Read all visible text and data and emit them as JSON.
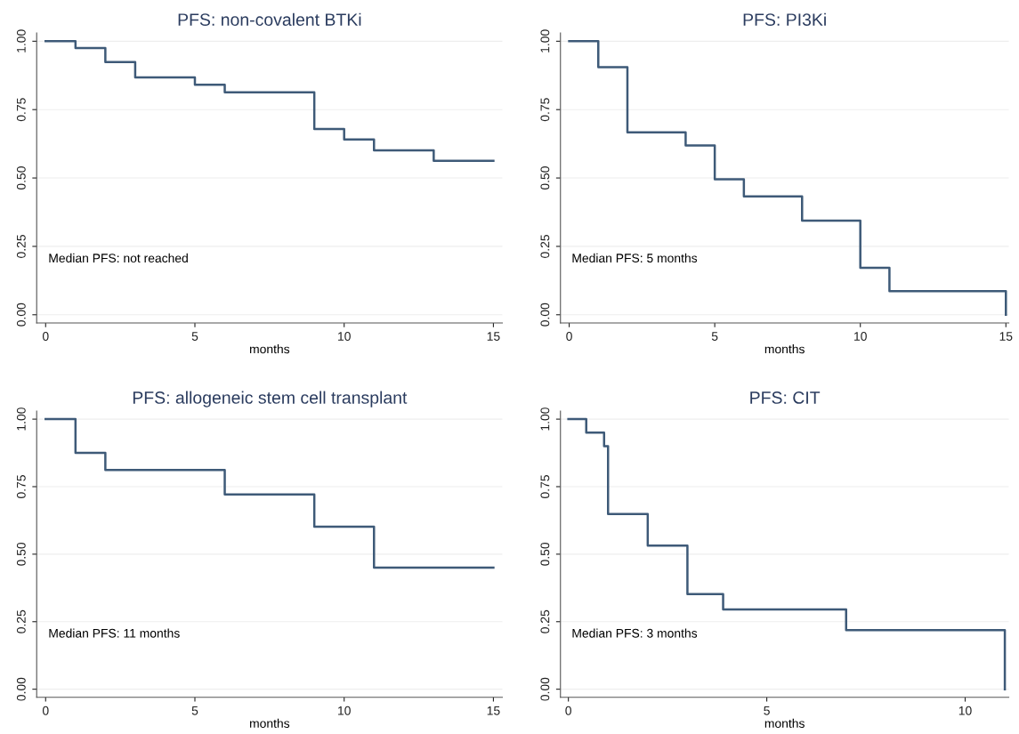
{
  "chart_data": [
    {
      "type": "step",
      "title": "PFS: non-covalent BTKi",
      "xlabel": "months",
      "x": [
        0,
        1,
        2,
        3,
        5,
        6,
        9,
        10,
        11,
        13,
        15
      ],
      "series": [
        {
          "color": "#3e5a78",
          "values": [
            1.0,
            0.975,
            0.924,
            0.868,
            0.841,
            0.813,
            0.679,
            0.641,
            0.601,
            0.563,
            0.563
          ]
        }
      ],
      "xlim": [
        -0.3,
        15.3
      ],
      "xticks": [
        0,
        5,
        10,
        15
      ],
      "ylim": [
        -0.03,
        1.03
      ],
      "yticks": [
        {
          "value": 0,
          "label": "0.00"
        },
        {
          "value": 0.25,
          "label": "0.25"
        },
        {
          "value": 0.5,
          "label": "0.50"
        },
        {
          "value": 0.75,
          "label": "0.75"
        },
        {
          "value": 1,
          "label": "1.00"
        }
      ],
      "grid": "y",
      "annotations": [
        "Median PFS: not reached"
      ]
    },
    {
      "type": "step",
      "title": "PFS: PI3Ki",
      "xlabel": "months",
      "x": [
        0,
        1,
        2,
        4,
        5,
        6,
        8,
        10,
        11,
        15
      ],
      "series": [
        {
          "color": "#3e5a78",
          "values": [
            1.0,
            0.905,
            0.667,
            0.619,
            0.495,
            0.433,
            0.344,
            0.172,
            0.086,
            0.0
          ]
        }
      ],
      "xlim": [
        -0.3,
        15.1
      ],
      "xticks": [
        0,
        5,
        10,
        15
      ],
      "ylim": [
        -0.03,
        1.03
      ],
      "yticks": [
        {
          "value": 0,
          "label": "0.00"
        },
        {
          "value": 0.25,
          "label": "0.25"
        },
        {
          "value": 0.5,
          "label": "0.50"
        },
        {
          "value": 0.75,
          "label": "0.75"
        },
        {
          "value": 1,
          "label": "1.00"
        }
      ],
      "grid": "y",
      "annotations": [
        "Median PFS: 5 months"
      ]
    },
    {
      "type": "step",
      "title": "PFS: allogeneic stem cell transplant",
      "xlabel": "months",
      "x": [
        0,
        1,
        2,
        6,
        9,
        11,
        15
      ],
      "series": [
        {
          "color": "#3e5a78",
          "values": [
            1.0,
            0.875,
            0.812,
            0.721,
            0.602,
            0.45,
            0.45
          ]
        }
      ],
      "xlim": [
        -0.3,
        15.3
      ],
      "xticks": [
        0,
        5,
        10,
        15
      ],
      "ylim": [
        -0.03,
        1.03
      ],
      "yticks": [
        {
          "value": 0,
          "label": "0.00"
        },
        {
          "value": 0.25,
          "label": "0.25"
        },
        {
          "value": 0.5,
          "label": "0.50"
        },
        {
          "value": 0.75,
          "label": "0.75"
        },
        {
          "value": 1,
          "label": "1.00"
        }
      ],
      "grid": "y",
      "annotations": [
        "Median PFS: 11 months"
      ]
    },
    {
      "type": "step",
      "title": "PFS: CIT",
      "xlabel": "months",
      "x": [
        0,
        0.45,
        0.9,
        1,
        2,
        3,
        3.9,
        7,
        11
      ],
      "series": [
        {
          "color": "#3e5a78",
          "values": [
            1.0,
            0.95,
            0.9,
            0.649,
            0.532,
            0.352,
            0.295,
            0.219,
            0.0
          ]
        }
      ],
      "xlim": [
        -0.2,
        11.1
      ],
      "xticks": [
        0,
        5,
        10
      ],
      "ylim": [
        -0.03,
        1.03
      ],
      "yticks": [
        {
          "value": 0,
          "label": "0.00"
        },
        {
          "value": 0.25,
          "label": "0.25"
        },
        {
          "value": 0.5,
          "label": "0.50"
        },
        {
          "value": 0.75,
          "label": "0.75"
        },
        {
          "value": 1,
          "label": "1.00"
        }
      ],
      "grid": "y",
      "annotations": [
        "Median PFS: 3 months"
      ]
    }
  ]
}
